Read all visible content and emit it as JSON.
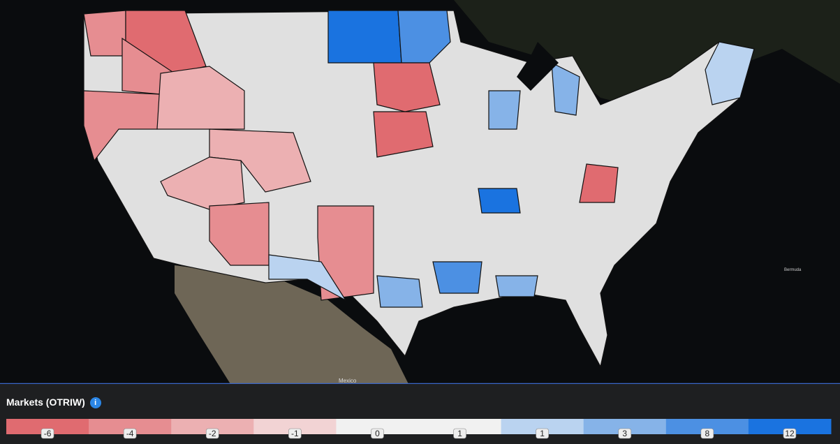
{
  "legend": {
    "title": "Markets (OTRIW)",
    "bins": [
      {
        "label": -6,
        "color": "#e06b70"
      },
      {
        "label": -4,
        "color": "#e68d91"
      },
      {
        "label": -2,
        "color": "#ecb0b2"
      },
      {
        "label": -1,
        "color": "#f2d3d4"
      },
      {
        "label": 0,
        "color": "#f1f1f1"
      },
      {
        "label": 1,
        "color": "#f1f1f1"
      },
      {
        "label": 1,
        "color": "#bad3f0"
      },
      {
        "label": 3,
        "color": "#86b3e8"
      },
      {
        "label": 8,
        "color": "#4c90e3"
      },
      {
        "label": 12,
        "color": "#1a73e0"
      }
    ]
  },
  "map_labels": [
    "Mexico",
    "Bermuda"
  ]
}
